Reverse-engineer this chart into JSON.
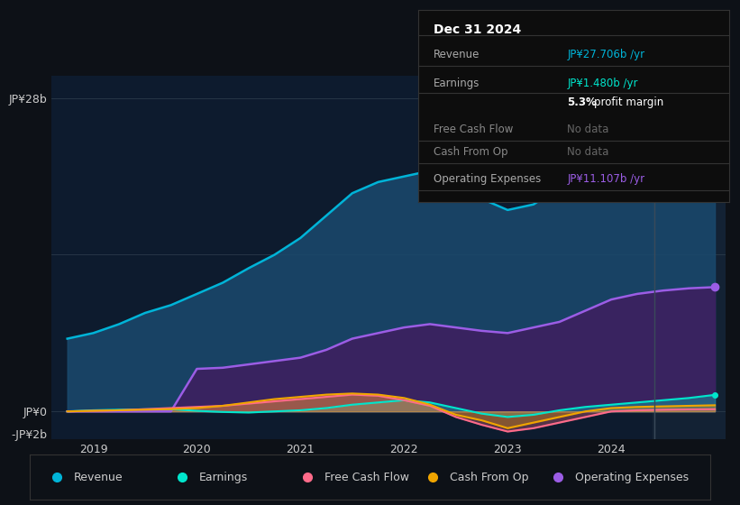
{
  "bg_color": "#0d1117",
  "plot_bg_color": "#0d1b2e",
  "grid_color": "#2a3a4a",
  "years": [
    2018.75,
    2019.0,
    2019.25,
    2019.5,
    2019.75,
    2020.0,
    2020.25,
    2020.5,
    2020.75,
    2021.0,
    2021.25,
    2021.5,
    2021.75,
    2022.0,
    2022.25,
    2022.5,
    2022.75,
    2023.0,
    2023.25,
    2023.5,
    2023.75,
    2024.0,
    2024.25,
    2024.5,
    2024.75,
    2025.0
  ],
  "revenue": [
    6.5,
    7.0,
    7.8,
    8.8,
    9.5,
    10.5,
    11.5,
    12.8,
    14.0,
    15.5,
    17.5,
    19.5,
    20.5,
    21.0,
    21.5,
    20.5,
    19.0,
    18.0,
    18.5,
    20.0,
    22.0,
    24.0,
    25.5,
    26.5,
    27.5,
    27.706
  ],
  "operating_expenses": [
    0.0,
    0.0,
    0.0,
    0.0,
    0.0,
    3.8,
    3.9,
    4.2,
    4.5,
    4.8,
    5.5,
    6.5,
    7.0,
    7.5,
    7.8,
    7.5,
    7.2,
    7.0,
    7.5,
    8.0,
    9.0,
    10.0,
    10.5,
    10.8,
    11.0,
    11.107
  ],
  "earnings": [
    0.0,
    0.1,
    0.15,
    0.18,
    0.2,
    0.05,
    -0.05,
    -0.1,
    0.0,
    0.1,
    0.3,
    0.6,
    0.8,
    1.0,
    0.8,
    0.3,
    -0.2,
    -0.5,
    -0.3,
    0.1,
    0.4,
    0.6,
    0.8,
    1.0,
    1.2,
    1.48
  ],
  "free_cash_flow": [
    0.0,
    0.05,
    0.1,
    0.2,
    0.3,
    0.4,
    0.5,
    0.7,
    0.9,
    1.1,
    1.3,
    1.5,
    1.4,
    1.0,
    0.5,
    -0.5,
    -1.2,
    -1.8,
    -1.5,
    -1.0,
    -0.5,
    0.0,
    0.1,
    0.15,
    0.18,
    0.2
  ],
  "cash_from_op": [
    0.0,
    0.05,
    0.1,
    0.15,
    0.2,
    0.3,
    0.5,
    0.8,
    1.1,
    1.3,
    1.5,
    1.6,
    1.5,
    1.2,
    0.6,
    -0.3,
    -0.8,
    -1.5,
    -1.0,
    -0.5,
    0.0,
    0.3,
    0.4,
    0.45,
    0.5,
    0.55
  ],
  "revenue_color": "#00b4d8",
  "revenue_fill": "#1a4a6e",
  "earnings_color": "#00e5cc",
  "free_cash_flow_color": "#ff6b8a",
  "cash_from_op_color": "#f0a500",
  "op_expenses_color": "#9b5de5",
  "op_expenses_fill": "#3d2060",
  "ylim_min": -2.5,
  "ylim_max": 30,
  "xtick_years": [
    2019,
    2020,
    2021,
    2022,
    2023,
    2024
  ],
  "tooltip_title": "Dec 31 2024",
  "tooltip_rows": [
    {
      "label": "Revenue",
      "value": "JP¥27.706b /yr",
      "value_color": "#00b4d8",
      "muted": false,
      "bold_prefix": null
    },
    {
      "label": "Earnings",
      "value": "JP¥1.480b /yr",
      "value_color": "#00e5cc",
      "muted": false,
      "bold_prefix": null
    },
    {
      "label": "",
      "value": "5.3% profit margin",
      "value_color": "#ffffff",
      "muted": false,
      "bold_prefix": "5.3%"
    },
    {
      "label": "Free Cash Flow",
      "value": "No data",
      "value_color": "#666666",
      "muted": true,
      "bold_prefix": null
    },
    {
      "label": "Cash From Op",
      "value": "No data",
      "value_color": "#666666",
      "muted": true,
      "bold_prefix": null
    },
    {
      "label": "Operating Expenses",
      "value": "JP¥11.107b /yr",
      "value_color": "#9b5de5",
      "muted": false,
      "bold_prefix": null
    }
  ],
  "legend_items": [
    {
      "label": "Revenue",
      "color": "#00b4d8"
    },
    {
      "label": "Earnings",
      "color": "#00e5cc"
    },
    {
      "label": "Free Cash Flow",
      "color": "#ff6b8a"
    },
    {
      "label": "Cash From Op",
      "color": "#f0a500"
    },
    {
      "label": "Operating Expenses",
      "color": "#9b5de5"
    }
  ]
}
